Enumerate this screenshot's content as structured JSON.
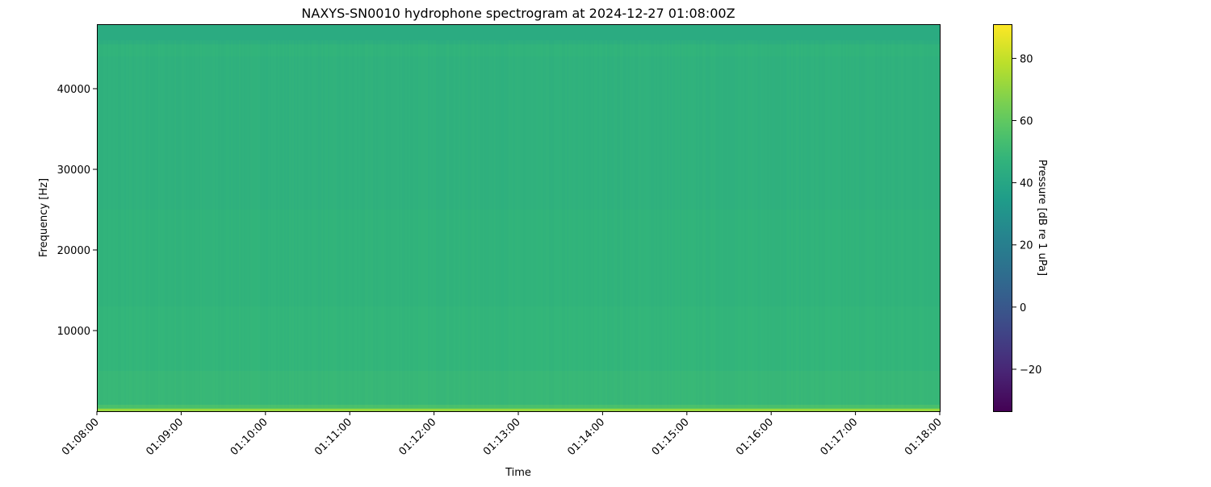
{
  "chart_data": {
    "type": "heatmap",
    "title": "NAXYS-SN0010 hydrophone spectrogram at 2024-12-27 01:08:00Z",
    "xlabel": "Time",
    "ylabel": "Frequency [Hz]",
    "colorbar_label": "Pressure [dB re 1 uPa]",
    "colormap": "viridis",
    "xlim": [
      "01:08:00",
      "01:18:00"
    ],
    "ylim": [
      0,
      48000
    ],
    "clim": [
      -33.5,
      91
    ],
    "x_ticks": [
      "01:08:00",
      "01:09:00",
      "01:10:00",
      "01:11:00",
      "01:12:00",
      "01:13:00",
      "01:14:00",
      "01:15:00",
      "01:16:00",
      "01:17:00",
      "01:18:00"
    ],
    "y_ticks": [
      10000,
      20000,
      30000,
      40000
    ],
    "colorbar_ticks": [
      -20,
      0,
      20,
      40,
      60,
      80
    ],
    "frequency_profile": [
      {
        "f_min": 0,
        "f_max": 300,
        "db": 72
      },
      {
        "f_min": 300,
        "f_max": 800,
        "db": 58
      },
      {
        "f_min": 800,
        "f_max": 5000,
        "db": 51
      },
      {
        "f_min": 5000,
        "f_max": 13000,
        "db": 49
      },
      {
        "f_min": 13000,
        "f_max": 25000,
        "db": 47
      },
      {
        "f_min": 25000,
        "f_max": 44000,
        "db": 45
      },
      {
        "f_min": 44000,
        "f_max": 45500,
        "db": 47
      },
      {
        "f_min": 45500,
        "f_max": 48000,
        "db": 43
      }
    ],
    "grid": false
  }
}
